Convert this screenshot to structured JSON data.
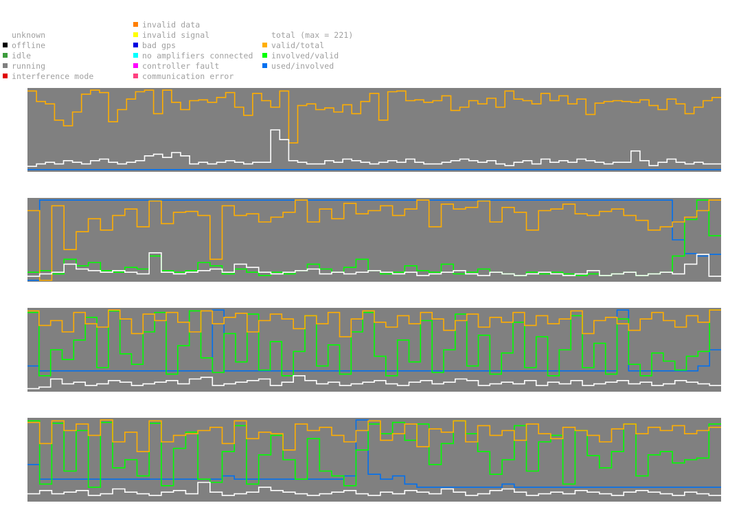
{
  "legend": {
    "status": [
      {
        "label": "unknown",
        "color": ""
      },
      {
        "label": "offline",
        "color": "#000000"
      },
      {
        "label": "idle",
        "color": "#3c9c3c"
      },
      {
        "label": "running",
        "color": "#808080"
      },
      {
        "label": "interference mode",
        "color": "#e00000"
      }
    ],
    "errors": [
      {
        "label": "invalid data",
        "color": "#ff7f00"
      },
      {
        "label": "invalid signal",
        "color": "#ffff00"
      },
      {
        "label": "bad gps",
        "color": "#0000e0"
      },
      {
        "label": "no amplifiers connected",
        "color": "#00ffff"
      },
      {
        "label": "controller fault",
        "color": "#ff00ff"
      },
      {
        "label": "communication error",
        "color": "#ff4080"
      }
    ],
    "ratios": [
      {
        "label": "total (max = 221)",
        "color": "#ffffff"
      },
      {
        "label": "valid/total",
        "color": "#ffae00"
      },
      {
        "label": "involved/valid",
        "color": "#00ff00"
      },
      {
        "label": "used/involved",
        "color": "#0070f0"
      }
    ]
  },
  "chart_data": {
    "type": "line",
    "background_color": "#808080",
    "series_colors": {
      "total": "#ffffff",
      "valid_total": "#ffae00",
      "involved_valid": "#00ff00",
      "used_involved": "#0070f0"
    },
    "ylim": [
      0,
      1
    ],
    "panels": [
      {
        "panel": 1,
        "valid_total": [
          0.98,
          0.85,
          0.82,
          0.62,
          0.55,
          0.72,
          0.94,
          0.99,
          0.96,
          0.6,
          0.75,
          0.88,
          0.97,
          0.99,
          0.7,
          0.99,
          0.84,
          0.75,
          0.86,
          0.87,
          0.84,
          0.9,
          0.96,
          0.78,
          0.68,
          0.95,
          0.86,
          0.78,
          0.98,
          0.34,
          0.8,
          0.82,
          0.75,
          0.77,
          0.72,
          0.81,
          0.7,
          0.85,
          0.95,
          0.62,
          0.97,
          0.98,
          0.86,
          0.87,
          0.84,
          0.86,
          0.92,
          0.74,
          0.78,
          0.86,
          0.82,
          0.89,
          0.78,
          0.98,
          0.88,
          0.86,
          0.82,
          0.95,
          0.86,
          0.92,
          0.82,
          0.88,
          0.69,
          0.83,
          0.85,
          0.86,
          0.85,
          0.84,
          0.87,
          0.8,
          0.75,
          0.88,
          0.82,
          0.7,
          0.78,
          0.86,
          0.9
        ],
        "total": [
          0.05,
          0.08,
          0.1,
          0.08,
          0.12,
          0.1,
          0.08,
          0.12,
          0.14,
          0.1,
          0.08,
          0.1,
          0.12,
          0.18,
          0.2,
          0.16,
          0.22,
          0.18,
          0.08,
          0.1,
          0.08,
          0.1,
          0.12,
          0.1,
          0.08,
          0.1,
          0.1,
          0.5,
          0.38,
          0.12,
          0.1,
          0.08,
          0.08,
          0.12,
          0.1,
          0.14,
          0.12,
          0.1,
          0.08,
          0.1,
          0.12,
          0.1,
          0.14,
          0.1,
          0.08,
          0.08,
          0.1,
          0.12,
          0.14,
          0.12,
          0.1,
          0.12,
          0.08,
          0.06,
          0.1,
          0.12,
          0.08,
          0.14,
          0.1,
          0.12,
          0.1,
          0.14,
          0.12,
          0.1,
          0.08,
          0.1,
          0.1,
          0.24,
          0.12,
          0.06,
          0.1,
          0.14,
          0.1,
          0.08,
          0.1,
          0.08,
          0.08
        ],
        "used_involved": [
          0.01
        ],
        "involved_valid": []
      },
      {
        "panel": 2,
        "valid_total": [
          0.86,
          0.0,
          0.92,
          0.38,
          0.6,
          0.76,
          0.62,
          0.8,
          0.88,
          0.66,
          0.98,
          0.7,
          0.84,
          0.85,
          0.8,
          0.26,
          0.92,
          0.8,
          0.82,
          0.72,
          0.78,
          0.84,
          0.99,
          0.72,
          0.88,
          0.76,
          0.95,
          0.82,
          0.86,
          0.92,
          0.8,
          0.88,
          0.99,
          0.66,
          0.94,
          0.88,
          0.9,
          0.98,
          0.72,
          0.9,
          0.84,
          0.62,
          0.86,
          0.88,
          0.94,
          0.82,
          0.8,
          0.85,
          0.88,
          0.8,
          0.74,
          0.62,
          0.66,
          0.72,
          0.78,
          0.86,
          0.99
        ],
        "total": [
          0.05,
          0.08,
          0.1,
          0.2,
          0.14,
          0.12,
          0.1,
          0.12,
          0.1,
          0.08,
          0.34,
          0.1,
          0.08,
          0.1,
          0.12,
          0.14,
          0.1,
          0.2,
          0.16,
          0.1,
          0.08,
          0.1,
          0.12,
          0.14,
          0.08,
          0.1,
          0.08,
          0.1,
          0.12,
          0.1,
          0.08,
          0.1,
          0.06,
          0.08,
          0.1,
          0.12,
          0.08,
          0.06,
          0.1,
          0.08,
          0.06,
          0.08,
          0.1,
          0.08,
          0.06,
          0.08,
          0.12,
          0.06,
          0.08,
          0.1,
          0.06,
          0.08,
          0.1,
          0.08,
          0.2,
          0.32,
          0.05
        ],
        "involved_valid": [
          0.1,
          0.12,
          0.08,
          0.26,
          0.18,
          0.22,
          0.12,
          0.1,
          0.16,
          0.14,
          0.3,
          0.12,
          0.1,
          0.12,
          0.22,
          0.18,
          0.08,
          0.14,
          0.1,
          0.06,
          0.1,
          0.08,
          0.12,
          0.2,
          0.14,
          0.1,
          0.16,
          0.26,
          0.12,
          0.08,
          0.1,
          0.18,
          0.12,
          0.1,
          0.2,
          0.08,
          0.1,
          0.14,
          0.1,
          0.08,
          0.06,
          0.1,
          0.08,
          0.1,
          0.08,
          0.06,
          0.08,
          0.06,
          0.08,
          0.1,
          0.06,
          0.08,
          0.1,
          0.3,
          0.75,
          0.99,
          0.55
        ],
        "used_involved": [
          0.0,
          0.99,
          0.99,
          0.99,
          0.99,
          0.99,
          0.99,
          0.99,
          0.99,
          0.99,
          0.99,
          0.99,
          0.99,
          0.99,
          0.99,
          0.99,
          0.99,
          0.99,
          0.99,
          0.99,
          0.99,
          0.99,
          0.99,
          0.99,
          0.99,
          0.99,
          0.99,
          0.99,
          0.99,
          0.99,
          0.99,
          0.99,
          0.99,
          0.99,
          0.99,
          0.99,
          0.99,
          0.99,
          0.99,
          0.99,
          0.99,
          0.99,
          0.99,
          0.99,
          0.99,
          0.99,
          0.99,
          0.99,
          0.99,
          0.99,
          0.99,
          0.99,
          0.99,
          0.5,
          0.33,
          0.3,
          0.32
        ]
      },
      {
        "panel": 3,
        "valid_total": [
          0.98,
          0.8,
          0.86,
          0.72,
          0.96,
          0.82,
          0.78,
          0.99,
          0.88,
          0.7,
          0.94,
          0.86,
          0.96,
          0.84,
          0.72,
          0.98,
          0.82,
          0.9,
          0.95,
          0.72,
          0.86,
          0.94,
          0.88,
          0.76,
          0.92,
          0.82,
          0.96,
          0.66,
          0.88,
          0.98,
          0.84,
          0.78,
          0.92,
          0.82,
          0.96,
          0.88,
          0.74,
          0.86,
          0.94,
          0.78,
          0.9,
          0.84,
          0.96,
          0.8,
          0.92,
          0.82,
          0.88,
          0.98,
          0.7,
          0.86,
          0.9,
          0.82,
          0.74,
          0.88,
          0.96,
          0.86,
          0.78,
          0.92,
          0.84,
          0.99
        ],
        "total": [
          0.02,
          0.04,
          0.14,
          0.08,
          0.1,
          0.06,
          0.08,
          0.12,
          0.1,
          0.06,
          0.08,
          0.1,
          0.12,
          0.08,
          0.14,
          0.16,
          0.06,
          0.08,
          0.1,
          0.12,
          0.14,
          0.06,
          0.1,
          0.18,
          0.12,
          0.08,
          0.1,
          0.06,
          0.08,
          0.1,
          0.12,
          0.08,
          0.06,
          0.1,
          0.12,
          0.08,
          0.1,
          0.14,
          0.12,
          0.06,
          0.08,
          0.1,
          0.08,
          0.12,
          0.06,
          0.1,
          0.08,
          0.12,
          0.06,
          0.08,
          0.1,
          0.12,
          0.08,
          0.1,
          0.06,
          0.08,
          0.12,
          0.1,
          0.08,
          0.06
        ],
        "involved_valid": [
          0.96,
          0.18,
          0.5,
          0.38,
          0.62,
          0.9,
          0.28,
          0.98,
          0.45,
          0.32,
          0.72,
          0.96,
          0.2,
          0.55,
          0.98,
          0.4,
          0.22,
          0.7,
          0.35,
          0.94,
          0.25,
          0.6,
          0.18,
          0.48,
          0.92,
          0.3,
          0.56,
          0.2,
          0.72,
          0.96,
          0.42,
          0.18,
          0.62,
          0.35,
          0.86,
          0.22,
          0.5,
          0.94,
          0.3,
          0.68,
          0.2,
          0.46,
          0.84,
          0.28,
          0.66,
          0.18,
          0.5,
          0.92,
          0.28,
          0.58,
          0.2,
          0.88,
          0.32,
          0.18,
          0.46,
          0.36,
          0.25,
          0.42,
          0.48,
          0.99
        ],
        "used_involved": [
          0.3,
          0.24,
          0.24,
          0.24,
          0.24,
          0.24,
          0.24,
          0.24,
          0.24,
          0.24,
          0.24,
          0.24,
          0.24,
          0.24,
          0.24,
          0.24,
          0.99,
          0.24,
          0.24,
          0.24,
          0.24,
          0.24,
          0.24,
          0.24,
          0.24,
          0.24,
          0.24,
          0.24,
          0.24,
          0.24,
          0.24,
          0.24,
          0.24,
          0.24,
          0.24,
          0.24,
          0.24,
          0.24,
          0.24,
          0.24,
          0.24,
          0.24,
          0.24,
          0.24,
          0.24,
          0.24,
          0.24,
          0.24,
          0.24,
          0.24,
          0.24,
          0.99,
          0.24,
          0.24,
          0.24,
          0.24,
          0.24,
          0.24,
          0.3,
          0.5
        ]
      },
      {
        "panel": 4,
        "valid_total": [
          0.96,
          0.7,
          0.98,
          0.86,
          0.94,
          0.8,
          0.99,
          0.72,
          0.84,
          0.6,
          0.98,
          0.72,
          0.8,
          0.82,
          0.86,
          0.9,
          0.7,
          0.98,
          0.76,
          0.84,
          0.82,
          0.62,
          0.94,
          0.86,
          0.9,
          0.8,
          0.72,
          0.86,
          0.98,
          0.74,
          0.82,
          0.94,
          0.66,
          0.88,
          0.84,
          0.98,
          0.72,
          0.92,
          0.8,
          0.86,
          0.74,
          0.94,
          0.82,
          0.76,
          0.9,
          0.86,
          0.8,
          0.72,
          0.88,
          0.94,
          0.82,
          0.9,
          0.86,
          0.92,
          0.82,
          0.86,
          0.9
        ],
        "total": [
          0.08,
          0.12,
          0.08,
          0.1,
          0.12,
          0.06,
          0.08,
          0.14,
          0.1,
          0.08,
          0.06,
          0.1,
          0.12,
          0.08,
          0.22,
          0.1,
          0.06,
          0.08,
          0.1,
          0.16,
          0.12,
          0.1,
          0.08,
          0.06,
          0.08,
          0.1,
          0.12,
          0.08,
          0.06,
          0.1,
          0.08,
          0.12,
          0.1,
          0.08,
          0.14,
          0.1,
          0.06,
          0.08,
          0.12,
          0.14,
          0.1,
          0.06,
          0.08,
          0.1,
          0.08,
          0.12,
          0.1,
          0.08,
          0.06,
          0.1,
          0.12,
          0.1,
          0.08,
          0.06,
          0.1,
          0.08,
          0.06
        ],
        "involved_valid": [
          0.98,
          0.2,
          0.95,
          0.36,
          0.86,
          0.16,
          0.96,
          0.4,
          0.5,
          0.3,
          0.95,
          0.18,
          0.64,
          0.84,
          0.26,
          0.22,
          0.6,
          0.92,
          0.2,
          0.56,
          0.8,
          0.5,
          0.26,
          0.76,
          0.36,
          0.3,
          0.18,
          0.62,
          0.94,
          0.82,
          0.96,
          0.74,
          0.94,
          0.44,
          0.7,
          0.98,
          0.82,
          0.6,
          0.32,
          0.5,
          0.92,
          0.36,
          0.72,
          0.8,
          0.2,
          0.86,
          0.55,
          0.4,
          0.6,
          0.94,
          0.3,
          0.56,
          0.6,
          0.46,
          0.5,
          0.52,
          0.94
        ],
        "used_involved": [
          0.44,
          0.26,
          0.26,
          0.26,
          0.26,
          0.26,
          0.26,
          0.26,
          0.26,
          0.26,
          0.26,
          0.26,
          0.26,
          0.26,
          0.26,
          0.26,
          0.3,
          0.26,
          0.26,
          0.26,
          0.26,
          0.26,
          0.26,
          0.26,
          0.26,
          0.26,
          0.3,
          0.99,
          0.32,
          0.26,
          0.3,
          0.2,
          0.16,
          0.16,
          0.16,
          0.16,
          0.16,
          0.16,
          0.16,
          0.2,
          0.16,
          0.16,
          0.16,
          0.16,
          0.16,
          0.16,
          0.16,
          0.16,
          0.16,
          0.16,
          0.16,
          0.16,
          0.16,
          0.16,
          0.16,
          0.16,
          0.16
        ]
      }
    ]
  }
}
